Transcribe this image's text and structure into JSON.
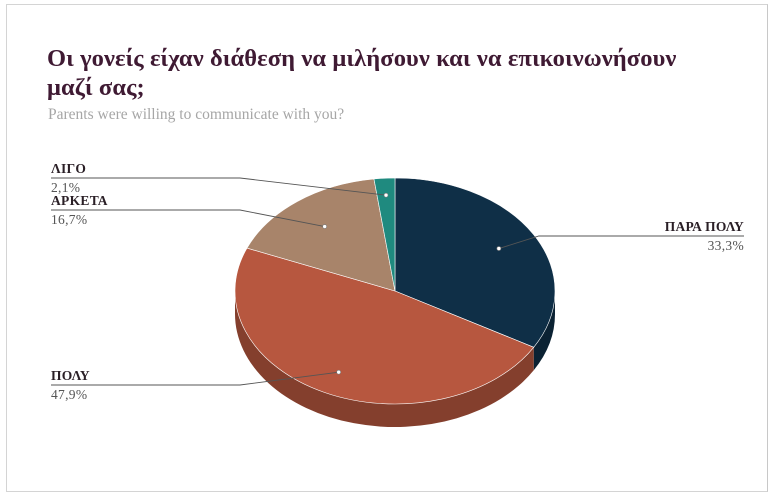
{
  "title": "Οι γονείς είχαν διάθεση να μιλήσουν και να επικοινωνήσουν μαζί σας;",
  "subtitle": "Parents were willing to communicate with you?",
  "chart_data": {
    "type": "pie",
    "title": "Οι γονείς είχαν διάθεση να μιλήσουν και να επικοινωνήσουν μαζί σας;",
    "subtitle": "Parents were willing to communicate with you?",
    "legend": "none",
    "slices": [
      {
        "label": "ΠΑΡΑ ΠΟΛΥ",
        "value": 33.3,
        "value_label": "33,3%",
        "color": "#0f2f47"
      },
      {
        "label": "ΠΟΛΥ",
        "value": 47.9,
        "value_label": "47,9%",
        "color": "#b7573f"
      },
      {
        "label": "ΑΡΚΕΤΑ",
        "value": 16.7,
        "value_label": "16,7%",
        "color": "#a8846a"
      },
      {
        "label": "ΛΙΓΟ",
        "value": 2.1,
        "value_label": "2,1%",
        "color": "#1f8a7f"
      }
    ]
  }
}
